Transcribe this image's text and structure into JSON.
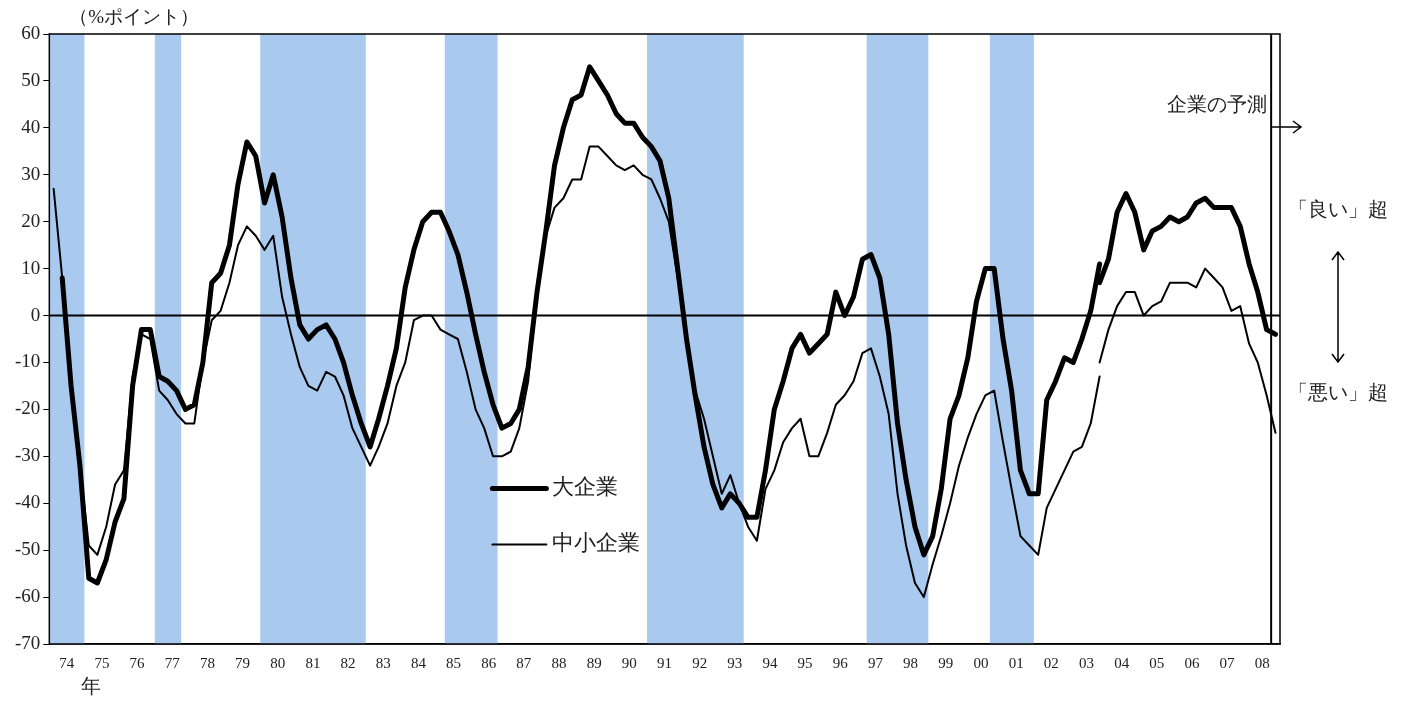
{
  "chart_data": {
    "type": "line",
    "ylabel": "（%ポイント）",
    "xlim": [
      "1974-01-01",
      "2009-01-01"
    ],
    "ylim": [
      -70,
      60
    ],
    "xticks": [
      {
        "value": "1974-07-01",
        "label": "74"
      },
      {
        "value": "1975-07-01",
        "label": "75"
      },
      {
        "value": "1976-07-01",
        "label": "76"
      },
      {
        "value": "1977-07-01",
        "label": "77"
      },
      {
        "value": "1978-07-01",
        "label": "78"
      },
      {
        "value": "1979-07-01",
        "label": "79"
      },
      {
        "value": "1980-07-01",
        "label": "80"
      },
      {
        "value": "1981-07-01",
        "label": "81"
      },
      {
        "value": "1982-07-01",
        "label": "82"
      },
      {
        "value": "1983-07-01",
        "label": "83"
      },
      {
        "value": "1984-07-01",
        "label": "84"
      },
      {
        "value": "1985-07-01",
        "label": "85"
      },
      {
        "value": "1986-07-01",
        "label": "86"
      },
      {
        "value": "1987-07-01",
        "label": "87"
      },
      {
        "value": "1988-07-01",
        "label": "88"
      },
      {
        "value": "1989-07-01",
        "label": "89"
      },
      {
        "value": "1990-07-01",
        "label": "90"
      },
      {
        "value": "1991-07-01",
        "label": "91"
      },
      {
        "value": "1992-07-01",
        "label": "92"
      },
      {
        "value": "1993-07-01",
        "label": "93"
      },
      {
        "value": "1994-07-01",
        "label": "94"
      },
      {
        "value": "1995-07-01",
        "label": "95"
      },
      {
        "value": "1996-07-01",
        "label": "96"
      },
      {
        "value": "1997-07-01",
        "label": "97"
      },
      {
        "value": "1998-07-01",
        "label": "98"
      },
      {
        "value": "1999-07-01",
        "label": "99"
      },
      {
        "value": "2000-07-01",
        "label": "00"
      },
      {
        "value": "2001-07-01",
        "label": "01"
      },
      {
        "value": "2002-07-01",
        "label": "02"
      },
      {
        "value": "2003-07-01",
        "label": "03"
      },
      {
        "value": "2004-07-01",
        "label": "04"
      },
      {
        "value": "2005-07-01",
        "label": "05"
      },
      {
        "value": "2006-07-01",
        "label": "06"
      },
      {
        "value": "2007-07-01",
        "label": "07"
      },
      {
        "value": "2008-07-01",
        "label": "08"
      }
    ],
    "yticks": [
      -70,
      -60,
      -50,
      -40,
      -30,
      -20,
      -10,
      0,
      10,
      20,
      30,
      40,
      50,
      60
    ],
    "legend": "bottom",
    "series": [
      {
        "name": "大企業",
        "color": "#000000",
        "x": [
          "1974-05-15",
          "1974-08-15",
          "1974-11-15",
          "1975-02-15",
          "1975-05-15",
          "1975-08-15",
          "1975-11-15",
          "1976-02-15",
          "1976-05-15",
          "1976-08-15",
          "1976-11-15",
          "1977-02-15",
          "1977-05-15",
          "1977-08-15",
          "1977-11-15",
          "1978-02-15",
          "1978-05-15",
          "1978-08-15",
          "1978-11-15",
          "1979-02-15",
          "1979-05-15",
          "1979-08-15",
          "1979-11-15",
          "1980-02-15",
          "1980-05-15",
          "1980-08-15",
          "1980-11-15",
          "1981-02-15",
          "1981-05-15",
          "1981-08-15",
          "1981-11-15",
          "1982-02-15",
          "1982-05-15",
          "1982-08-15",
          "1982-11-15",
          "1983-02-15",
          "1983-05-15",
          "1983-08-15",
          "1983-11-15",
          "1984-02-15",
          "1984-05-15",
          "1984-08-15",
          "1984-11-15",
          "1985-02-15",
          "1985-05-15",
          "1985-08-15",
          "1985-11-15",
          "1986-02-15",
          "1986-05-15",
          "1986-08-15",
          "1986-11-15",
          "1987-02-15",
          "1987-05-15",
          "1987-08-15",
          "1987-11-15",
          "1988-02-15",
          "1988-05-15",
          "1988-08-15",
          "1988-11-15",
          "1989-02-15",
          "1989-05-15",
          "1989-08-15",
          "1989-11-15",
          "1990-02-15",
          "1990-05-15",
          "1990-08-15",
          "1990-11-15",
          "1991-02-15",
          "1991-05-15",
          "1991-08-15",
          "1991-11-15",
          "1992-02-15",
          "1992-05-15",
          "1992-08-15",
          "1992-11-15",
          "1993-02-15",
          "1993-05-15",
          "1993-08-15",
          "1993-11-15",
          "1994-02-15",
          "1994-05-15",
          "1994-08-15",
          "1994-11-15",
          "1995-02-15",
          "1995-05-15",
          "1995-08-15",
          "1995-11-15",
          "1996-02-15",
          "1996-05-15",
          "1996-08-15",
          "1996-11-15",
          "1997-02-15",
          "1997-05-15",
          "1997-08-15",
          "1997-11-15",
          "1998-02-15",
          "1998-05-15",
          "1998-08-15",
          "1998-11-15",
          "1999-02-15",
          "1999-05-15",
          "1999-08-15",
          "1999-11-15",
          "2000-02-15",
          "2000-05-15",
          "2000-08-15",
          "2000-11-15",
          "2001-02-15",
          "2001-05-15",
          "2001-08-15",
          "2001-11-15",
          "2002-02-15",
          "2002-05-15",
          "2002-08-15",
          "2002-11-15",
          "2003-02-15",
          "2003-05-15",
          "2003-08-15",
          "2003-11-15"
        ],
        "values": [
          8,
          -15,
          -32,
          -56,
          -57,
          -52,
          -44,
          -39,
          -15,
          -3,
          -3,
          -13,
          -14,
          -16,
          -20,
          -19,
          -10,
          7,
          9,
          15,
          28,
          37,
          34,
          24,
          30,
          21,
          8,
          -2,
          -5,
          -3,
          -2,
          -5,
          -10,
          -17,
          -23,
          -28,
          -22,
          -15,
          -7,
          6,
          14,
          20,
          22,
          22,
          18,
          13,
          5,
          -4,
          -12,
          -19,
          -24,
          -23,
          -20,
          -11,
          5,
          18,
          32,
          40,
          46,
          47,
          53,
          50,
          47,
          43,
          41,
          41,
          38,
          36,
          33,
          25,
          10,
          -5,
          -17,
          -28,
          -36,
          -41,
          -38,
          -40,
          -43,
          -43,
          -33,
          -20,
          -14,
          -7,
          -4,
          -8,
          -6,
          -4,
          5,
          0,
          4,
          12,
          13,
          8,
          -4,
          -23,
          -35,
          -45,
          -51,
          -47,
          -37,
          -22,
          -17,
          -9,
          3,
          10,
          10,
          -5,
          -16,
          -33,
          -38,
          -38,
          -18,
          -14,
          -9,
          -10,
          -5,
          1,
          11
        ]
      },
      {
        "name": "中小企業",
        "color": "#000000",
        "x": [
          "1974-02-15",
          "1974-05-15",
          "1974-08-15",
          "1974-11-15",
          "1975-02-15",
          "1975-05-15",
          "1975-08-15",
          "1975-11-15",
          "1976-02-15",
          "1976-05-15",
          "1976-08-15",
          "1976-11-15",
          "1977-02-15",
          "1977-05-15",
          "1977-08-15",
          "1977-11-15",
          "1978-02-15",
          "1978-05-15",
          "1978-08-15",
          "1978-11-15",
          "1979-02-15",
          "1979-05-15",
          "1979-08-15",
          "1979-11-15",
          "1980-02-15",
          "1980-05-15",
          "1980-08-15",
          "1980-11-15",
          "1981-02-15",
          "1981-05-15",
          "1981-08-15",
          "1981-11-15",
          "1982-02-15",
          "1982-05-15",
          "1982-08-15",
          "1982-11-15",
          "1983-02-15",
          "1983-05-15",
          "1983-08-15",
          "1983-11-15",
          "1984-02-15",
          "1984-05-15",
          "1984-08-15",
          "1984-11-15",
          "1985-02-15",
          "1985-05-15",
          "1985-08-15",
          "1985-11-15",
          "1986-02-15",
          "1986-05-15",
          "1986-08-15",
          "1986-11-15",
          "1987-02-15",
          "1987-05-15",
          "1987-08-15",
          "1987-11-15",
          "1988-02-15",
          "1988-05-15",
          "1988-08-15",
          "1988-11-15",
          "1989-02-15",
          "1989-05-15",
          "1989-08-15",
          "1989-11-15",
          "1990-02-15",
          "1990-05-15",
          "1990-08-15",
          "1990-11-15",
          "1991-02-15",
          "1991-05-15",
          "1991-08-15",
          "1991-11-15",
          "1992-02-15",
          "1992-05-15",
          "1992-08-15",
          "1992-11-15",
          "1993-02-15",
          "1993-05-15",
          "1993-08-15",
          "1993-11-15",
          "1994-02-15",
          "1994-05-15",
          "1994-08-15",
          "1994-11-15",
          "1995-02-15",
          "1995-05-15",
          "1995-08-15",
          "1995-11-15",
          "1996-02-15",
          "1996-05-15",
          "1996-08-15",
          "1996-11-15",
          "1997-02-15",
          "1997-05-15",
          "1997-08-15",
          "1997-11-15",
          "1998-02-15",
          "1998-05-15",
          "1998-08-15",
          "1998-11-15",
          "1999-02-15",
          "1999-05-15",
          "1999-08-15",
          "1999-11-15",
          "2000-02-15",
          "2000-05-15",
          "2000-08-15",
          "2000-11-15",
          "2001-02-15",
          "2001-05-15",
          "2001-08-15",
          "2001-11-15",
          "2002-02-15",
          "2002-05-15",
          "2002-08-15",
          "2002-11-15",
          "2003-02-15",
          "2003-05-15",
          "2003-08-15",
          "2003-11-15"
        ],
        "values": [
          27,
          8,
          -15,
          -32,
          -49,
          -51,
          -45,
          -36,
          -33,
          -13,
          -4,
          -5,
          -16,
          -18,
          -21,
          -23,
          -23,
          -10,
          -1,
          1,
          7,
          15,
          19,
          17,
          14,
          17,
          4,
          -4,
          -11,
          -15,
          -16,
          -12,
          -13,
          -17,
          -24,
          -28,
          -32,
          -28,
          -23,
          -15,
          -10,
          -1,
          0,
          0,
          -3,
          -4,
          -5,
          -12,
          -20,
          -24,
          -30,
          -30,
          -29,
          -24,
          -14,
          5,
          17,
          23,
          25,
          29,
          29,
          36,
          36,
          34,
          32,
          31,
          32,
          30,
          29,
          25,
          20,
          8,
          -4,
          -16,
          -22,
          -30,
          -38,
          -34,
          -40,
          -45,
          -48,
          -37,
          -33,
          -27,
          -24,
          -22,
          -30,
          -30,
          -25,
          -19,
          -17,
          -14,
          -8,
          -7,
          -13,
          -21,
          -38,
          -49,
          -57,
          -60,
          -53,
          -47,
          -40,
          -32,
          -26,
          -21,
          -17,
          -16,
          -27,
          -37,
          -47,
          -49,
          -51,
          -41,
          -37,
          -33,
          -29,
          -28,
          -23,
          -13
        ]
      },
      {
        "color": "#000000",
        "x": [
          "2003-11-15",
          "2004-02-15",
          "2004-05-15",
          "2004-08-15",
          "2004-11-15",
          "2005-02-15",
          "2005-05-15",
          "2005-08-15",
          "2005-11-15",
          "2006-02-15",
          "2006-05-15",
          "2006-08-15",
          "2006-11-15",
          "2007-02-15",
          "2007-05-15",
          "2007-08-15",
          "2007-11-15",
          "2008-02-15",
          "2008-05-15",
          "2008-08-15",
          "2008-11-15"
        ],
        "values": [
          7,
          12,
          22,
          26,
          22,
          14,
          18,
          19,
          21,
          20,
          21,
          24,
          25,
          23,
          23,
          23,
          19,
          11,
          5,
          -3,
          -4
        ]
      },
      {
        "color": "#000000",
        "x": [
          "2003-11-15",
          "2004-02-15",
          "2004-05-15",
          "2004-08-15",
          "2004-11-15",
          "2005-02-15",
          "2005-05-15",
          "2005-08-15",
          "2005-11-15",
          "2006-02-15",
          "2006-05-15",
          "2006-08-15",
          "2006-11-15",
          "2007-02-15",
          "2007-05-15",
          "2007-08-15",
          "2007-11-15",
          "2008-02-15",
          "2008-05-15",
          "2008-08-15",
          "2008-11-15"
        ],
        "values": [
          -10,
          -3,
          2,
          5,
          5,
          0,
          2,
          3,
          7,
          7,
          7,
          6,
          10,
          8,
          6,
          1,
          2,
          -6,
          -10,
          -17,
          -25
        ]
      }
    ],
    "bands": [
      {
        "axis": "x",
        "from": "1974-01-01",
        "to": "1975-01-01",
        "color": "#a9c9ef"
      },
      {
        "axis": "x",
        "from": "1977-01-01",
        "to": "1977-10-01",
        "color": "#a9c9ef"
      },
      {
        "axis": "x",
        "from": "1980-01-01",
        "to": "1983-01-01",
        "color": "#a9c9ef"
      },
      {
        "axis": "x",
        "from": "1985-04-01",
        "to": "1986-10-01",
        "color": "#a9c9ef"
      },
      {
        "axis": "x",
        "from": "1991-01-01",
        "to": "1993-10-01",
        "color": "#a9c9ef"
      },
      {
        "axis": "x",
        "from": "1997-04-01",
        "to": "1999-01-01",
        "color": "#a9c9ef"
      },
      {
        "axis": "x",
        "from": "2000-10-01",
        "to": "2002-01-01",
        "color": "#a9c9ef"
      }
    ],
    "ref_lines": [
      {
        "axis": "y",
        "value": 0,
        "color": "#000000"
      },
      {
        "axis": "x",
        "value": "2008-10-01",
        "label": "企業の予測",
        "color": "#000000"
      }
    ],
    "annotations": [
      "年",
      "「良い」超",
      "「悪い」超"
    ]
  }
}
